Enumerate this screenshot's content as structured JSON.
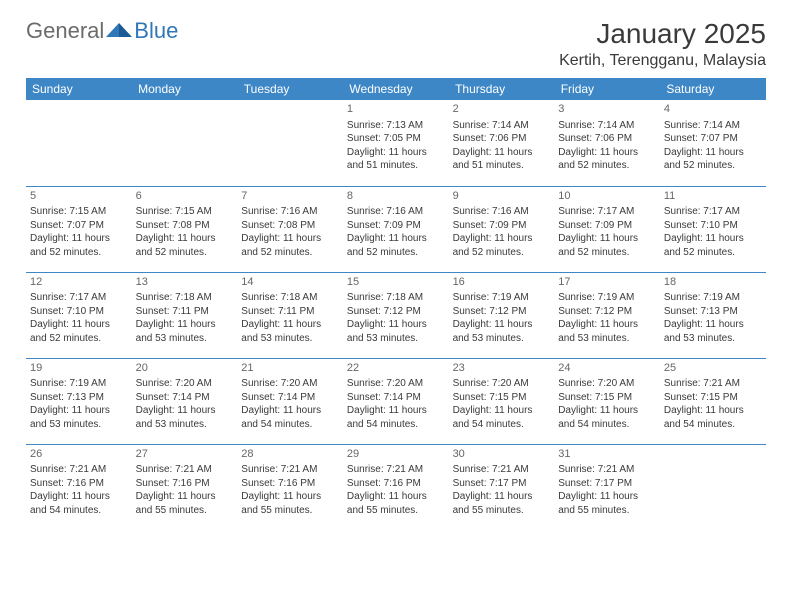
{
  "brand": {
    "part1": "General",
    "part2": "Blue"
  },
  "title": "January 2025",
  "location": "Kertih, Terengganu, Malaysia",
  "colors": {
    "header_bg": "#3d87c7",
    "header_text": "#ffffff",
    "rule": "#3d87c7",
    "brand_blue": "#2f77b7",
    "text": "#3a3a3a"
  },
  "weekdays": [
    "Sunday",
    "Monday",
    "Tuesday",
    "Wednesday",
    "Thursday",
    "Friday",
    "Saturday"
  ],
  "weeks": [
    [
      null,
      null,
      null,
      {
        "n": "1",
        "sr": "Sunrise: 7:13 AM",
        "ss": "Sunset: 7:05 PM",
        "d1": "Daylight: 11 hours",
        "d2": "and 51 minutes."
      },
      {
        "n": "2",
        "sr": "Sunrise: 7:14 AM",
        "ss": "Sunset: 7:06 PM",
        "d1": "Daylight: 11 hours",
        "d2": "and 51 minutes."
      },
      {
        "n": "3",
        "sr": "Sunrise: 7:14 AM",
        "ss": "Sunset: 7:06 PM",
        "d1": "Daylight: 11 hours",
        "d2": "and 52 minutes."
      },
      {
        "n": "4",
        "sr": "Sunrise: 7:14 AM",
        "ss": "Sunset: 7:07 PM",
        "d1": "Daylight: 11 hours",
        "d2": "and 52 minutes."
      }
    ],
    [
      {
        "n": "5",
        "sr": "Sunrise: 7:15 AM",
        "ss": "Sunset: 7:07 PM",
        "d1": "Daylight: 11 hours",
        "d2": "and 52 minutes."
      },
      {
        "n": "6",
        "sr": "Sunrise: 7:15 AM",
        "ss": "Sunset: 7:08 PM",
        "d1": "Daylight: 11 hours",
        "d2": "and 52 minutes."
      },
      {
        "n": "7",
        "sr": "Sunrise: 7:16 AM",
        "ss": "Sunset: 7:08 PM",
        "d1": "Daylight: 11 hours",
        "d2": "and 52 minutes."
      },
      {
        "n": "8",
        "sr": "Sunrise: 7:16 AM",
        "ss": "Sunset: 7:09 PM",
        "d1": "Daylight: 11 hours",
        "d2": "and 52 minutes."
      },
      {
        "n": "9",
        "sr": "Sunrise: 7:16 AM",
        "ss": "Sunset: 7:09 PM",
        "d1": "Daylight: 11 hours",
        "d2": "and 52 minutes."
      },
      {
        "n": "10",
        "sr": "Sunrise: 7:17 AM",
        "ss": "Sunset: 7:09 PM",
        "d1": "Daylight: 11 hours",
        "d2": "and 52 minutes."
      },
      {
        "n": "11",
        "sr": "Sunrise: 7:17 AM",
        "ss": "Sunset: 7:10 PM",
        "d1": "Daylight: 11 hours",
        "d2": "and 52 minutes."
      }
    ],
    [
      {
        "n": "12",
        "sr": "Sunrise: 7:17 AM",
        "ss": "Sunset: 7:10 PM",
        "d1": "Daylight: 11 hours",
        "d2": "and 52 minutes."
      },
      {
        "n": "13",
        "sr": "Sunrise: 7:18 AM",
        "ss": "Sunset: 7:11 PM",
        "d1": "Daylight: 11 hours",
        "d2": "and 53 minutes."
      },
      {
        "n": "14",
        "sr": "Sunrise: 7:18 AM",
        "ss": "Sunset: 7:11 PM",
        "d1": "Daylight: 11 hours",
        "d2": "and 53 minutes."
      },
      {
        "n": "15",
        "sr": "Sunrise: 7:18 AM",
        "ss": "Sunset: 7:12 PM",
        "d1": "Daylight: 11 hours",
        "d2": "and 53 minutes."
      },
      {
        "n": "16",
        "sr": "Sunrise: 7:19 AM",
        "ss": "Sunset: 7:12 PM",
        "d1": "Daylight: 11 hours",
        "d2": "and 53 minutes."
      },
      {
        "n": "17",
        "sr": "Sunrise: 7:19 AM",
        "ss": "Sunset: 7:12 PM",
        "d1": "Daylight: 11 hours",
        "d2": "and 53 minutes."
      },
      {
        "n": "18",
        "sr": "Sunrise: 7:19 AM",
        "ss": "Sunset: 7:13 PM",
        "d1": "Daylight: 11 hours",
        "d2": "and 53 minutes."
      }
    ],
    [
      {
        "n": "19",
        "sr": "Sunrise: 7:19 AM",
        "ss": "Sunset: 7:13 PM",
        "d1": "Daylight: 11 hours",
        "d2": "and 53 minutes."
      },
      {
        "n": "20",
        "sr": "Sunrise: 7:20 AM",
        "ss": "Sunset: 7:14 PM",
        "d1": "Daylight: 11 hours",
        "d2": "and 53 minutes."
      },
      {
        "n": "21",
        "sr": "Sunrise: 7:20 AM",
        "ss": "Sunset: 7:14 PM",
        "d1": "Daylight: 11 hours",
        "d2": "and 54 minutes."
      },
      {
        "n": "22",
        "sr": "Sunrise: 7:20 AM",
        "ss": "Sunset: 7:14 PM",
        "d1": "Daylight: 11 hours",
        "d2": "and 54 minutes."
      },
      {
        "n": "23",
        "sr": "Sunrise: 7:20 AM",
        "ss": "Sunset: 7:15 PM",
        "d1": "Daylight: 11 hours",
        "d2": "and 54 minutes."
      },
      {
        "n": "24",
        "sr": "Sunrise: 7:20 AM",
        "ss": "Sunset: 7:15 PM",
        "d1": "Daylight: 11 hours",
        "d2": "and 54 minutes."
      },
      {
        "n": "25",
        "sr": "Sunrise: 7:21 AM",
        "ss": "Sunset: 7:15 PM",
        "d1": "Daylight: 11 hours",
        "d2": "and 54 minutes."
      }
    ],
    [
      {
        "n": "26",
        "sr": "Sunrise: 7:21 AM",
        "ss": "Sunset: 7:16 PM",
        "d1": "Daylight: 11 hours",
        "d2": "and 54 minutes."
      },
      {
        "n": "27",
        "sr": "Sunrise: 7:21 AM",
        "ss": "Sunset: 7:16 PM",
        "d1": "Daylight: 11 hours",
        "d2": "and 55 minutes."
      },
      {
        "n": "28",
        "sr": "Sunrise: 7:21 AM",
        "ss": "Sunset: 7:16 PM",
        "d1": "Daylight: 11 hours",
        "d2": "and 55 minutes."
      },
      {
        "n": "29",
        "sr": "Sunrise: 7:21 AM",
        "ss": "Sunset: 7:16 PM",
        "d1": "Daylight: 11 hours",
        "d2": "and 55 minutes."
      },
      {
        "n": "30",
        "sr": "Sunrise: 7:21 AM",
        "ss": "Sunset: 7:17 PM",
        "d1": "Daylight: 11 hours",
        "d2": "and 55 minutes."
      },
      {
        "n": "31",
        "sr": "Sunrise: 7:21 AM",
        "ss": "Sunset: 7:17 PM",
        "d1": "Daylight: 11 hours",
        "d2": "and 55 minutes."
      },
      null
    ]
  ]
}
